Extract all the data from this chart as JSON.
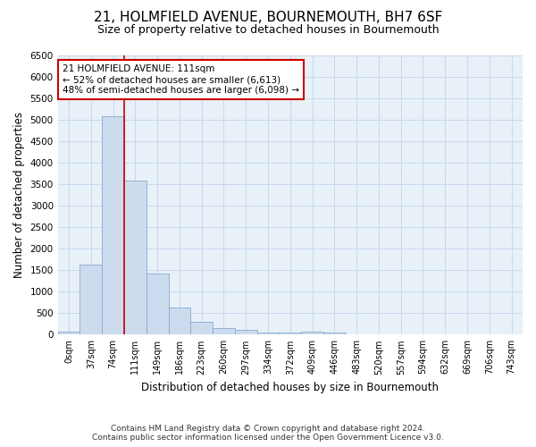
{
  "title": "21, HOLMFIELD AVENUE, BOURNEMOUTH, BH7 6SF",
  "subtitle": "Size of property relative to detached houses in Bournemouth",
  "xlabel": "Distribution of detached houses by size in Bournemouth",
  "ylabel": "Number of detached properties",
  "footnote1": "Contains HM Land Registry data © Crown copyright and database right 2024.",
  "footnote2": "Contains public sector information licensed under the Open Government Licence v3.0.",
  "bar_labels": [
    "0sqm",
    "37sqm",
    "74sqm",
    "111sqm",
    "149sqm",
    "186sqm",
    "223sqm",
    "260sqm",
    "297sqm",
    "334sqm",
    "372sqm",
    "409sqm",
    "446sqm",
    "483sqm",
    "520sqm",
    "557sqm",
    "594sqm",
    "632sqm",
    "669sqm",
    "706sqm",
    "743sqm"
  ],
  "bar_values": [
    75,
    1625,
    5075,
    3575,
    1425,
    625,
    300,
    150,
    100,
    50,
    50,
    75,
    50,
    0,
    0,
    0,
    0,
    0,
    0,
    0,
    0
  ],
  "bar_color": "#ccdcee",
  "bar_edge_color": "#88aacc",
  "red_line_index": 3,
  "red_line_color": "#cc0000",
  "annotation_text": "21 HOLMFIELD AVENUE: 111sqm\n← 52% of detached houses are smaller (6,613)\n48% of semi-detached houses are larger (6,098) →",
  "annotation_box_color": "#ffffff",
  "annotation_box_edge": "#cc0000",
  "ylim": [
    0,
    6500
  ],
  "yticks": [
    0,
    500,
    1000,
    1500,
    2000,
    2500,
    3000,
    3500,
    4000,
    4500,
    5000,
    5500,
    6000,
    6500
  ],
  "grid_color": "#c8d8ec",
  "background_color": "#e8f0f8",
  "title_fontsize": 11,
  "subtitle_fontsize": 9,
  "axis_label_fontsize": 8.5,
  "tick_fontsize": 7.5,
  "annotation_fontsize": 7.5,
  "footnote_fontsize": 6.5
}
